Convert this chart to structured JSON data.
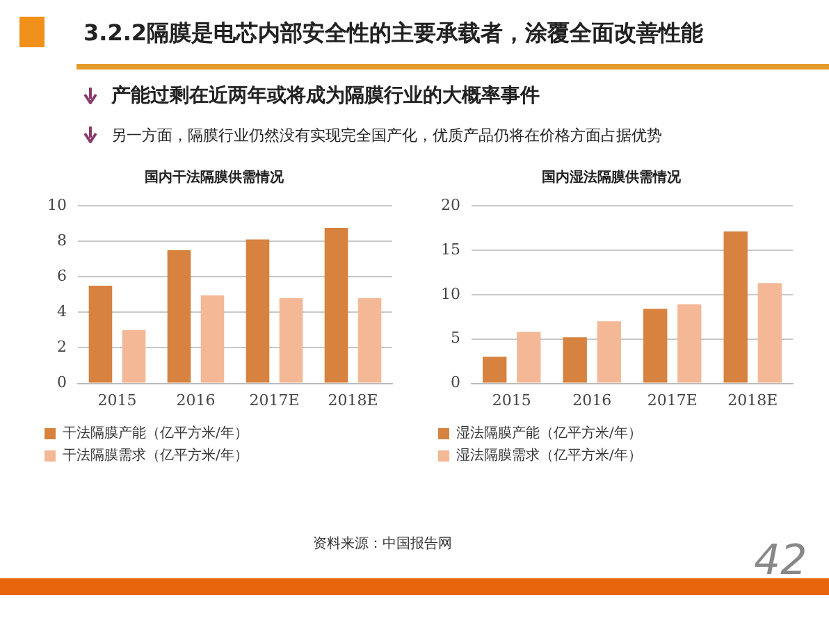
{
  "chart_data": [
    {
      "type": "bar",
      "title": "国内干法隔膜供需情况",
      "categories": [
        "2015",
        "2016",
        "2017E",
        "2018E"
      ],
      "series": [
        {
          "name": "干法隔膜产能（亿平方米/年）",
          "color": "#d7823f",
          "values": [
            5.5,
            7.5,
            8.1,
            8.75
          ]
        },
        {
          "name": "干法隔膜需求（亿平方米/年）",
          "color": "#f4b896",
          "values": [
            3.0,
            4.95,
            4.8,
            4.8
          ]
        }
      ],
      "ylim": [
        0,
        10
      ],
      "yticks": [
        0,
        2,
        4,
        6,
        8,
        10
      ],
      "grid": "y",
      "legend": "bottom",
      "annotations": [
        "3.2.2隔膜是电芯内部安全性的主要承载者，涂覆全面改善性能",
        "产能过剩在近两年或将成为隔膜行业的大概率事件",
        "另一方面，隔膜行业仍然没有实现完全国产化，优质产品仍将在价格方面占据优势"
      ]
    },
    {
      "type": "bar",
      "title": "国内湿法隔膜供需情况",
      "categories": [
        "2015",
        "2016",
        "2017E",
        "2018E"
      ],
      "series": [
        {
          "name": "湿法隔膜产能（亿平方米/年）",
          "color": "#d7823f",
          "values": [
            3.0,
            5.2,
            8.4,
            17.1
          ]
        },
        {
          "name": "湿法隔膜需求（亿平方米/年）",
          "color": "#f4b896",
          "values": [
            5.8,
            7.0,
            8.9,
            11.3
          ]
        }
      ],
      "ylim": [
        0,
        20
      ],
      "yticks": [
        0,
        5,
        10,
        15,
        20
      ],
      "grid": "y",
      "legend": "bottom",
      "annotations": [
        "资料来源：中国报告网",
        "42"
      ]
    }
  ]
}
